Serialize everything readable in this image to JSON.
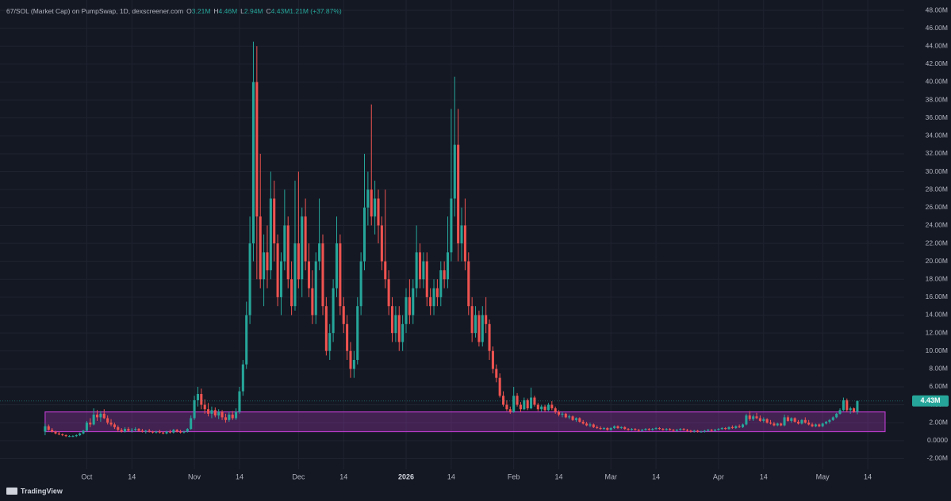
{
  "chart_data": {
    "type": "candlestick",
    "title": "67/SOL (Market Cap) on PumpSwap, 1D, dexscreener.com",
    "ohlc_header": [
      {
        "key": "O",
        "value": "3.21M"
      },
      {
        "key": "H",
        "value": "4.46M"
      },
      {
        "key": "L",
        "value": "2.94M"
      },
      {
        "key": "C",
        "value": "4.43M"
      },
      {
        "key": "",
        "value": "1.21M (+37.87%)"
      }
    ],
    "last_price_label": "4.43M",
    "brand": "TradingView",
    "up_color": "#26a69a",
    "down_color": "#ef5350",
    "zone_color": "#b83cc9",
    "background": "#141823",
    "grid": true,
    "xlim": [
      -13,
      247.5
    ],
    "ylim": [
      -3.2,
      49.15
    ],
    "xticks": [
      {
        "value": 12,
        "label": "Oct"
      },
      {
        "value": 25,
        "label": "14"
      },
      {
        "value": 43,
        "label": "Nov"
      },
      {
        "value": 56,
        "label": "14"
      },
      {
        "value": 73,
        "label": "Dec"
      },
      {
        "value": 86,
        "label": "14"
      },
      {
        "value": 104,
        "label": "2026"
      },
      {
        "value": 117,
        "label": "14"
      },
      {
        "value": 135,
        "label": "Feb"
      },
      {
        "value": 148,
        "label": "14"
      },
      {
        "value": 163,
        "label": "Mar"
      },
      {
        "value": 176,
        "label": "14"
      },
      {
        "value": 194,
        "label": "Apr"
      },
      {
        "value": 207,
        "label": "14"
      },
      {
        "value": 224,
        "label": "May"
      },
      {
        "value": 237,
        "label": "14"
      }
    ],
    "yticks": [
      {
        "value": -2,
        "label": "-2.00M"
      },
      {
        "value": 0,
        "label": "0.0000"
      },
      {
        "value": 2,
        "label": "2.00M"
      },
      {
        "value": 4,
        "label": "4.00M"
      },
      {
        "value": 6,
        "label": "6.00M"
      },
      {
        "value": 8,
        "label": "8.00M"
      },
      {
        "value": 10,
        "label": "10.00M"
      },
      {
        "value": 12,
        "label": "12.00M"
      },
      {
        "value": 14,
        "label": "14.00M"
      },
      {
        "value": 16,
        "label": "16.00M"
      },
      {
        "value": 18,
        "label": "18.00M"
      },
      {
        "value": 20,
        "label": "20.00M"
      },
      {
        "value": 22,
        "label": "22.00M"
      },
      {
        "value": 24,
        "label": "24.00M"
      },
      {
        "value": 26,
        "label": "26.00M"
      },
      {
        "value": 28,
        "label": "28.00M"
      },
      {
        "value": 30,
        "label": "30.00M"
      },
      {
        "value": 32,
        "label": "32.00M"
      },
      {
        "value": 34,
        "label": "34.00M"
      },
      {
        "value": 36,
        "label": "36.00M"
      },
      {
        "value": 38,
        "label": "38.00M"
      },
      {
        "value": 40,
        "label": "40.00M"
      },
      {
        "value": 42,
        "label": "42.00M"
      },
      {
        "value": 44,
        "label": "44.00M"
      },
      {
        "value": 46,
        "label": "46.00M"
      },
      {
        "value": 48,
        "label": "48.00M"
      }
    ],
    "zone": {
      "x": [
        0,
        242
      ],
      "top": 3.2,
      "bottom": 1.0
    },
    "candles": [
      [
        1.0,
        1.9,
        0.6,
        1.6
      ],
      [
        1.6,
        1.8,
        1.1,
        1.2
      ],
      [
        1.2,
        1.4,
        0.9,
        1.0
      ],
      [
        1.0,
        1.1,
        0.7,
        0.8
      ],
      [
        0.8,
        1.0,
        0.6,
        0.7
      ],
      [
        0.7,
        0.8,
        0.5,
        0.6
      ],
      [
        0.6,
        0.7,
        0.4,
        0.5
      ],
      [
        0.5,
        0.6,
        0.4,
        0.5
      ],
      [
        0.5,
        0.6,
        0.4,
        0.5
      ],
      [
        0.5,
        0.7,
        0.4,
        0.6
      ],
      [
        0.6,
        0.9,
        0.5,
        0.8
      ],
      [
        0.8,
        1.2,
        0.7,
        1.1
      ],
      [
        1.1,
        2.2,
        1.0,
        2.0
      ],
      [
        2.0,
        2.5,
        1.5,
        1.8
      ],
      [
        1.8,
        3.6,
        1.7,
        2.9
      ],
      [
        2.9,
        3.4,
        2.2,
        2.6
      ],
      [
        2.6,
        3.3,
        2.1,
        3.0
      ],
      [
        3.0,
        3.5,
        2.4,
        2.5
      ],
      [
        2.5,
        2.8,
        1.8,
        2.0
      ],
      [
        2.0,
        2.4,
        1.6,
        1.8
      ],
      [
        1.8,
        2.0,
        1.3,
        1.5
      ],
      [
        1.5,
        1.7,
        1.0,
        1.2
      ],
      [
        1.2,
        1.4,
        0.9,
        1.0
      ],
      [
        1.0,
        1.5,
        0.9,
        1.3
      ],
      [
        1.3,
        1.5,
        1.0,
        1.1
      ],
      [
        1.1,
        1.4,
        0.9,
        1.2
      ],
      [
        1.2,
        1.5,
        1.0,
        1.3
      ],
      [
        1.3,
        1.4,
        1.0,
        1.1
      ],
      [
        1.1,
        1.3,
        0.9,
        1.0
      ],
      [
        1.0,
        1.2,
        0.8,
        1.1
      ],
      [
        1.1,
        1.3,
        0.9,
        1.0
      ],
      [
        1.0,
        1.1,
        0.8,
        0.9
      ],
      [
        0.9,
        1.1,
        0.8,
        1.0
      ],
      [
        1.0,
        1.2,
        0.8,
        0.9
      ],
      [
        0.9,
        1.0,
        0.7,
        0.8
      ],
      [
        0.8,
        1.1,
        0.7,
        1.0
      ],
      [
        1.0,
        1.2,
        0.8,
        0.9
      ],
      [
        0.9,
        1.3,
        0.8,
        1.2
      ],
      [
        1.2,
        1.3,
        0.9,
        1.0
      ],
      [
        1.0,
        1.2,
        0.8,
        0.9
      ],
      [
        0.9,
        1.1,
        0.8,
        1.0
      ],
      [
        1.0,
        1.4,
        0.9,
        1.3
      ],
      [
        1.3,
        2.8,
        1.2,
        2.5
      ],
      [
        2.5,
        5.0,
        2.3,
        4.5
      ],
      [
        4.5,
        6.0,
        3.8,
        5.2
      ],
      [
        5.2,
        5.8,
        3.5,
        4.0
      ],
      [
        4.0,
        4.6,
        3.0,
        3.5
      ],
      [
        3.5,
        4.2,
        2.7,
        3.0
      ],
      [
        3.0,
        3.8,
        2.5,
        3.4
      ],
      [
        3.4,
        3.7,
        2.6,
        2.8
      ],
      [
        2.8,
        3.5,
        2.4,
        3.2
      ],
      [
        3.2,
        3.4,
        2.3,
        2.6
      ],
      [
        2.6,
        3.0,
        2.0,
        2.3
      ],
      [
        2.3,
        3.2,
        2.1,
        2.9
      ],
      [
        2.9,
        3.3,
        2.3,
        2.5
      ],
      [
        2.5,
        3.6,
        2.3,
        3.2
      ],
      [
        3.2,
        6.0,
        3.0,
        5.5
      ],
      [
        5.5,
        9.0,
        5.0,
        8.5
      ],
      [
        8.5,
        15.5,
        8.0,
        14.0
      ],
      [
        14.0,
        25.0,
        13.0,
        22.0
      ],
      [
        22.0,
        44.5,
        20.0,
        40.0
      ],
      [
        40.0,
        44.0,
        18.0,
        25.0
      ],
      [
        25.0,
        32.0,
        17.0,
        18.0
      ],
      [
        18.0,
        23.0,
        15.0,
        21.0
      ],
      [
        21.0,
        24.0,
        17.0,
        19.0
      ],
      [
        19.0,
        30.0,
        18.0,
        27.0
      ],
      [
        27.0,
        29.0,
        20.0,
        22.0
      ],
      [
        22.0,
        23.0,
        15.0,
        16.0
      ],
      [
        16.0,
        21.0,
        14.0,
        20.0
      ],
      [
        20.0,
        28.0,
        19.0,
        24.0
      ],
      [
        24.0,
        25.0,
        17.0,
        18.0
      ],
      [
        18.0,
        20.0,
        14.0,
        15.0
      ],
      [
        15.0,
        29.0,
        14.5,
        22.0
      ],
      [
        22.0,
        30.0,
        17.0,
        18.0
      ],
      [
        18.0,
        26.0,
        16.0,
        25.0
      ],
      [
        25.0,
        27.0,
        19.0,
        20.0
      ],
      [
        20.0,
        22.0,
        16.0,
        17.0
      ],
      [
        17.0,
        19.0,
        13.0,
        14.0
      ],
      [
        14.0,
        21.0,
        13.0,
        20.0
      ],
      [
        20.0,
        27.0,
        19.0,
        22.0
      ],
      [
        22.0,
        23.0,
        14.0,
        15.0
      ],
      [
        15.0,
        16.0,
        9.5,
        10.0
      ],
      [
        10.0,
        13.0,
        9.0,
        12.0
      ],
      [
        12.0,
        18.0,
        11.0,
        17.0
      ],
      [
        17.0,
        25.0,
        16.0,
        22.0
      ],
      [
        22.0,
        23.0,
        14.0,
        15.0
      ],
      [
        15.0,
        16.0,
        12.0,
        13.0
      ],
      [
        13.0,
        14.0,
        9.0,
        10.0
      ],
      [
        10.0,
        11.0,
        7.0,
        8.0
      ],
      [
        8.0,
        10.0,
        7.0,
        9.0
      ],
      [
        9.0,
        16.0,
        8.5,
        15.0
      ],
      [
        15.0,
        21.0,
        14.0,
        20.0
      ],
      [
        20.0,
        32.0,
        19.0,
        26.0
      ],
      [
        26.0,
        30.0,
        24.0,
        28.0
      ],
      [
        28.0,
        37.5,
        24.0,
        25.0
      ],
      [
        25.0,
        29.0,
        23.0,
        27.0
      ],
      [
        27.0,
        28.0,
        22.0,
        24.0
      ],
      [
        24.0,
        25.0,
        19.0,
        20.0
      ],
      [
        20.0,
        28.0,
        17.0,
        18.0
      ],
      [
        18.0,
        19.0,
        14.0,
        15.0
      ],
      [
        15.0,
        16.0,
        11.0,
        12.0
      ],
      [
        12.0,
        15.0,
        11.0,
        14.0
      ],
      [
        14.0,
        15.0,
        10.0,
        11.0
      ],
      [
        11.0,
        14.0,
        10.0,
        13.0
      ],
      [
        13.0,
        17.0,
        12.0,
        16.0
      ],
      [
        16.0,
        18.0,
        13.0,
        14.0
      ],
      [
        14.0,
        18.0,
        13.0,
        17.0
      ],
      [
        17.0,
        24.0,
        16.0,
        21.0
      ],
      [
        21.0,
        22.0,
        17.0,
        18.0
      ],
      [
        18.0,
        21.0,
        17.0,
        20.0
      ],
      [
        20.0,
        21.0,
        15.0,
        16.0
      ],
      [
        16.0,
        17.0,
        14.0,
        15.0
      ],
      [
        15.0,
        18.0,
        14.0,
        17.0
      ],
      [
        17.0,
        18.0,
        15.0,
        16.0
      ],
      [
        16.0,
        20.0,
        15.0,
        19.0
      ],
      [
        19.0,
        20.0,
        17.0,
        18.0
      ],
      [
        18.0,
        25.0,
        17.0,
        21.0
      ],
      [
        21.0,
        37.0,
        20.0,
        27.0
      ],
      [
        27.0,
        40.6,
        25.0,
        33.0
      ],
      [
        33.0,
        37.0,
        20.0,
        22.0
      ],
      [
        22.0,
        26.0,
        20.0,
        24.0
      ],
      [
        24.0,
        27.0,
        19.0,
        20.0
      ],
      [
        20.0,
        21.0,
        14.0,
        15.0
      ],
      [
        15.0,
        16.0,
        11.0,
        12.0
      ],
      [
        12.0,
        15.0,
        11.5,
        14.0
      ],
      [
        14.0,
        14.5,
        10.5,
        11.0
      ],
      [
        11.0,
        15.0,
        10.5,
        14.0
      ],
      [
        14.0,
        16.0,
        12.0,
        13.0
      ],
      [
        13.0,
        13.5,
        9.0,
        10.0
      ],
      [
        10.0,
        10.5,
        7.5,
        8.0
      ],
      [
        8.0,
        8.5,
        6.5,
        7.0
      ],
      [
        7.0,
        7.5,
        4.8,
        5.0
      ],
      [
        5.0,
        5.5,
        3.8,
        4.0
      ],
      [
        4.0,
        4.5,
        3.3,
        3.5
      ],
      [
        3.5,
        3.8,
        3.0,
        3.2
      ],
      [
        3.2,
        6.0,
        3.1,
        5.0
      ],
      [
        5.0,
        5.3,
        3.8,
        4.0
      ],
      [
        4.0,
        4.3,
        3.2,
        3.5
      ],
      [
        3.5,
        4.8,
        3.4,
        4.5
      ],
      [
        4.5,
        4.7,
        3.4,
        3.6
      ],
      [
        3.6,
        5.9,
        3.5,
        4.8
      ],
      [
        4.8,
        5.0,
        3.8,
        4.0
      ],
      [
        4.0,
        4.2,
        3.3,
        3.5
      ],
      [
        3.5,
        4.0,
        3.2,
        3.8
      ],
      [
        3.8,
        4.0,
        3.2,
        3.4
      ],
      [
        3.4,
        4.2,
        3.3,
        4.0
      ],
      [
        4.0,
        4.4,
        3.4,
        3.6
      ],
      [
        3.6,
        3.8,
        3.0,
        3.2
      ],
      [
        3.2,
        3.4,
        2.7,
        2.9
      ],
      [
        2.9,
        3.2,
        2.6,
        3.0
      ],
      [
        3.0,
        3.1,
        2.5,
        2.6
      ],
      [
        2.6,
        2.9,
        2.4,
        2.7
      ],
      [
        2.7,
        2.8,
        2.2,
        2.3
      ],
      [
        2.3,
        2.6,
        2.1,
        2.5
      ],
      [
        2.5,
        2.6,
        2.0,
        2.1
      ],
      [
        2.1,
        2.3,
        1.8,
        1.9
      ],
      [
        1.9,
        2.1,
        1.6,
        1.7
      ],
      [
        1.7,
        2.0,
        1.5,
        1.8
      ],
      [
        1.8,
        1.9,
        1.4,
        1.5
      ],
      [
        1.5,
        1.7,
        1.3,
        1.4
      ],
      [
        1.4,
        1.6,
        1.2,
        1.3
      ],
      [
        1.3,
        1.5,
        1.2,
        1.4
      ],
      [
        1.4,
        1.5,
        1.1,
        1.2
      ],
      [
        1.2,
        1.5,
        1.1,
        1.4
      ],
      [
        1.4,
        1.7,
        1.3,
        1.6
      ],
      [
        1.6,
        1.7,
        1.3,
        1.4
      ],
      [
        1.4,
        1.6,
        1.3,
        1.5
      ],
      [
        1.5,
        1.6,
        1.2,
        1.3
      ],
      [
        1.3,
        1.4,
        1.1,
        1.2
      ],
      [
        1.2,
        1.4,
        1.1,
        1.3
      ],
      [
        1.3,
        1.4,
        1.1,
        1.2
      ],
      [
        1.2,
        1.3,
        1.0,
        1.1
      ],
      [
        1.1,
        1.3,
        1.0,
        1.2
      ],
      [
        1.2,
        1.4,
        1.1,
        1.3
      ],
      [
        1.3,
        1.4,
        1.1,
        1.2
      ],
      [
        1.2,
        1.4,
        1.1,
        1.3
      ],
      [
        1.3,
        1.5,
        1.2,
        1.4
      ],
      [
        1.4,
        1.5,
        1.2,
        1.3
      ],
      [
        1.3,
        1.4,
        1.1,
        1.2
      ],
      [
        1.2,
        1.4,
        1.1,
        1.3
      ],
      [
        1.3,
        1.4,
        1.1,
        1.2
      ],
      [
        1.2,
        1.3,
        1.0,
        1.1
      ],
      [
        1.1,
        1.3,
        1.0,
        1.2
      ],
      [
        1.2,
        1.4,
        1.1,
        1.3
      ],
      [
        1.3,
        1.4,
        1.1,
        1.2
      ],
      [
        1.2,
        1.3,
        1.0,
        1.1
      ],
      [
        1.1,
        1.2,
        0.9,
        1.0
      ],
      [
        1.0,
        1.2,
        0.9,
        1.1
      ],
      [
        1.1,
        1.2,
        0.9,
        1.0
      ],
      [
        1.0,
        1.1,
        0.9,
        1.0
      ],
      [
        1.0,
        1.2,
        0.9,
        1.1
      ],
      [
        1.1,
        1.3,
        1.0,
        1.2
      ],
      [
        1.2,
        1.3,
        1.0,
        1.1
      ],
      [
        1.1,
        1.3,
        1.0,
        1.2
      ],
      [
        1.2,
        1.4,
        1.1,
        1.3
      ],
      [
        1.3,
        1.5,
        1.2,
        1.4
      ],
      [
        1.4,
        1.5,
        1.2,
        1.3
      ],
      [
        1.3,
        1.6,
        1.2,
        1.5
      ],
      [
        1.5,
        1.7,
        1.3,
        1.4
      ],
      [
        1.4,
        1.7,
        1.3,
        1.6
      ],
      [
        1.6,
        1.8,
        1.4,
        1.5
      ],
      [
        1.5,
        1.9,
        1.4,
        1.8
      ],
      [
        1.8,
        3.0,
        1.7,
        2.8
      ],
      [
        2.8,
        3.3,
        2.2,
        2.4
      ],
      [
        2.4,
        2.9,
        2.2,
        2.7
      ],
      [
        2.7,
        3.1,
        2.4,
        2.5
      ],
      [
        2.5,
        2.8,
        2.1,
        2.2
      ],
      [
        2.2,
        2.6,
        2.0,
        2.4
      ],
      [
        2.4,
        2.5,
        1.9,
        2.0
      ],
      [
        2.0,
        2.3,
        1.8,
        1.9
      ],
      [
        1.9,
        2.1,
        1.6,
        1.7
      ],
      [
        1.7,
        2.0,
        1.6,
        1.9
      ],
      [
        1.9,
        2.0,
        1.6,
        1.7
      ],
      [
        1.7,
        2.9,
        1.6,
        2.6
      ],
      [
        2.6,
        2.8,
        2.1,
        2.2
      ],
      [
        2.2,
        2.6,
        2.0,
        2.5
      ],
      [
        2.5,
        2.6,
        2.0,
        2.1
      ],
      [
        2.1,
        2.3,
        1.8,
        1.9
      ],
      [
        1.9,
        2.4,
        1.8,
        2.3
      ],
      [
        2.3,
        2.6,
        1.9,
        2.0
      ],
      [
        2.0,
        2.3,
        1.7,
        1.8
      ],
      [
        1.8,
        2.0,
        1.5,
        1.6
      ],
      [
        1.6,
        1.9,
        1.5,
        1.8
      ],
      [
        1.8,
        1.9,
        1.5,
        1.6
      ],
      [
        1.6,
        2.0,
        1.5,
        1.9
      ],
      [
        1.9,
        2.2,
        1.8,
        2.1
      ],
      [
        2.1,
        2.4,
        1.9,
        2.3
      ],
      [
        2.3,
        2.7,
        2.2,
        2.6
      ],
      [
        2.6,
        3.1,
        2.5,
        3.0
      ],
      [
        3.0,
        3.6,
        2.9,
        3.4
      ],
      [
        3.4,
        4.8,
        3.3,
        4.5
      ],
      [
        4.5,
        4.7,
        3.2,
        3.4
      ],
      [
        3.4,
        3.8,
        3.0,
        3.6
      ],
      [
        3.6,
        3.7,
        3.1,
        3.21
      ],
      [
        3.21,
        4.46,
        2.94,
        4.43
      ]
    ]
  }
}
